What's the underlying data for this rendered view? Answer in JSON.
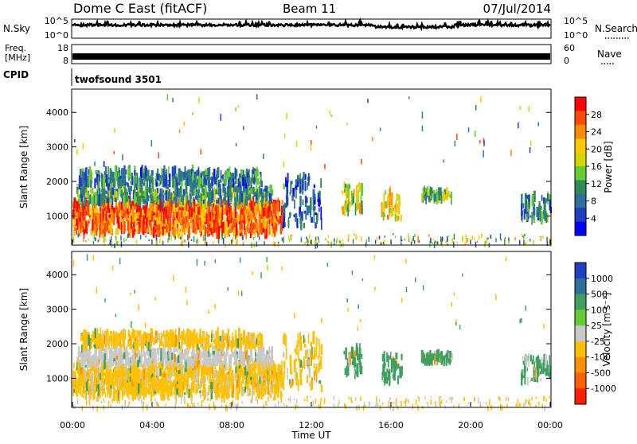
{
  "header": {
    "station": "Dome C East (fitACF)",
    "beam": "Beam 11",
    "date": "07/Jul/2014"
  },
  "nsky_panel": {
    "label": "N.Sky",
    "right_label": "N.Search",
    "ticks_left": [
      "10^5",
      "10^0"
    ],
    "ticks_right": [
      "10^5",
      "10^0"
    ]
  },
  "freq_panel": {
    "label_line1": "Freq.",
    "label_line2": "[MHz]",
    "ticks_left": [
      "18",
      "8"
    ],
    "ticks_right": [
      "60",
      "0"
    ],
    "right_label": "Nave"
  },
  "cpid_panel": {
    "label": "CPID",
    "value": "twofsound 3501"
  },
  "power_panel": {
    "ylabel": "Slant Range [km]",
    "cbar_label": "Power [dB]",
    "cbar_ticks": [
      "28",
      "24",
      "20",
      "16",
      "12",
      "8",
      "4"
    ],
    "cbar_colors": [
      "#ff0000",
      "#ff4a00",
      "#ff8c00",
      "#ffc800",
      "#d4d400",
      "#66cc33",
      "#2e8b57",
      "#2f6f9f",
      "#1e3fbf",
      "#0000ff"
    ]
  },
  "velocity_panel": {
    "ylabel": "Slant Range [km]",
    "cbar_label": "Velocity [m s⁻¹]",
    "cbar_ticks": [
      "1000",
      "500",
      "100",
      "25",
      "-25",
      "-100",
      "-500",
      "-1000"
    ],
    "cbar_colors": [
      "#2040c0",
      "#2f6f9f",
      "#3f9f5f",
      "#66cc33",
      "#c8c8c8",
      "#ffc000",
      "#ff9000",
      "#ff6000",
      "#ff2000"
    ]
  },
  "chart_data": {
    "type": "heatmap",
    "xlabel": "Time UT",
    "x_ticks": [
      "00:00",
      "04:00",
      "08:00",
      "12:00",
      "16:00",
      "20:00",
      "00:00"
    ],
    "xlim_hours": [
      0,
      24
    ],
    "y_ticks": [
      "1000",
      "2000",
      "3000",
      "4000"
    ],
    "ylim_km": [
      180,
      4650
    ],
    "echo_regions": [
      {
        "t_start": 0.0,
        "t_end": 10.5,
        "r_min": 500,
        "r_max": 1400,
        "power_db": 26,
        "velocity": -100
      },
      {
        "t_start": 0.2,
        "t_end": 10.0,
        "r_min": 1400,
        "r_max": 1800,
        "power_db": 12,
        "velocity": 25
      },
      {
        "t_start": 0.3,
        "t_end": 9.5,
        "r_min": 1900,
        "r_max": 2300,
        "power_db": 10,
        "velocity": -100
      },
      {
        "t_start": 10.5,
        "t_end": 12.5,
        "r_min": 700,
        "r_max": 2200,
        "power_db": 8,
        "velocity": -100
      },
      {
        "t_start": 13.5,
        "t_end": 14.5,
        "r_min": 1100,
        "r_max": 1900,
        "power_db": 18,
        "velocity": 100
      },
      {
        "t_start": 15.5,
        "t_end": 16.5,
        "r_min": 900,
        "r_max": 1700,
        "power_db": 20,
        "velocity": 100
      },
      {
        "t_start": 17.5,
        "t_end": 19.0,
        "r_min": 1500,
        "r_max": 1700,
        "power_db": 14,
        "velocity": 100
      },
      {
        "t_start": 22.5,
        "t_end": 24.0,
        "r_min": 900,
        "r_max": 1600,
        "power_db": 10,
        "velocity": 100
      }
    ]
  }
}
